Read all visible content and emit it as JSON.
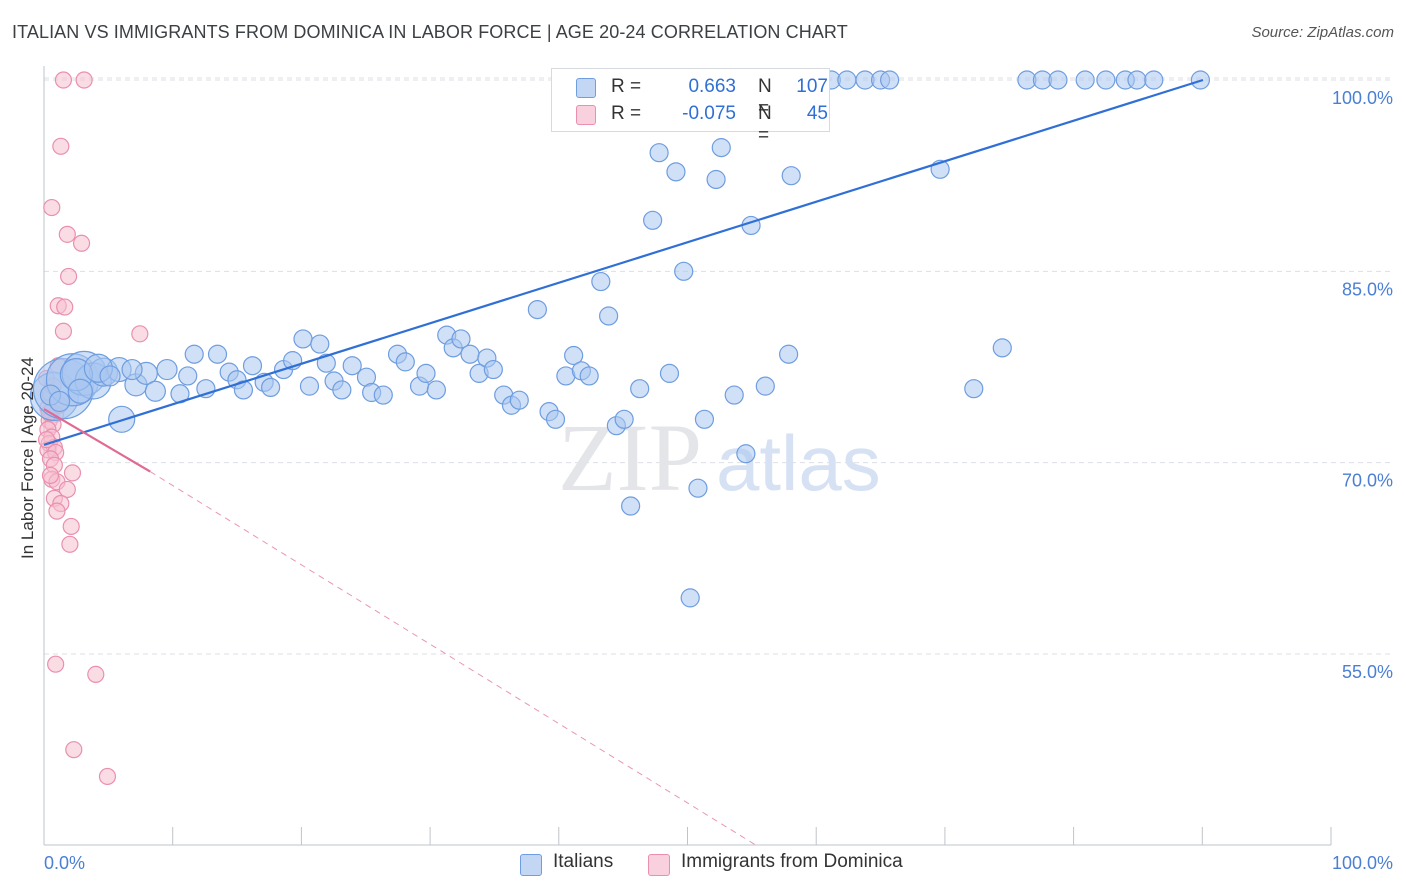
{
  "header": {
    "title": "ITALIAN VS IMMIGRANTS FROM DOMINICA IN LABOR FORCE | AGE 20-24 CORRELATION CHART",
    "source": "Source: ZipAtlas.com"
  },
  "watermark": {
    "zip": "ZIP",
    "atlas": "atlas"
  },
  "colors": {
    "blue": "#2f6fd6",
    "blue_fill": "#aac6f0",
    "blue_stroke": "#6e9de0",
    "pink": "#e06a94",
    "pink_fill": "#f6bfd0",
    "pink_stroke": "#ea8fae",
    "grid": "#dcdfe4",
    "axis_text": "#4a7fd4"
  },
  "legend": {
    "rows": [
      {
        "r_label": "R = ",
        "r_value": "0.663",
        "n_label": "N =",
        "n_value": "107"
      },
      {
        "r_label": "R = ",
        "r_value": "-0.075",
        "n_label": "N =",
        "n_value": "45"
      }
    ]
  },
  "bottom_legend": {
    "italians": "Italians",
    "dominica": "Immigrants from Dominica"
  },
  "chart_data": {
    "type": "scatter",
    "xlabel": "",
    "ylabel": "In Labor Force | Age 20-24",
    "xlim": [
      0,
      100
    ],
    "ylim": [
      40,
      102
    ],
    "x_tick_labels": [
      "0.0%",
      "100.0%"
    ],
    "y_ticks": [
      55,
      70,
      85,
      100
    ],
    "y_tick_labels": [
      "55.0%",
      "70.0%",
      "85.0%",
      "100.0%"
    ],
    "series": [
      {
        "name": "Italians",
        "color": "#2f6fd6",
        "R": 0.663,
        "N": 107,
        "trend": {
          "x": [
            0,
            89.5
          ],
          "y": [
            71.4,
            100.0
          ]
        },
        "points": [
          [
            0.8,
            75.2,
            24
          ],
          [
            1.5,
            75.8,
            30
          ],
          [
            2.2,
            76.5,
            26
          ],
          [
            3.1,
            77.0,
            22
          ],
          [
            3.8,
            76.4,
            18
          ],
          [
            4.6,
            77.1,
            14
          ],
          [
            5.8,
            77.3,
            12
          ],
          [
            2.5,
            76.9,
            16
          ],
          [
            6.0,
            73.4,
            13
          ],
          [
            7.1,
            76.1,
            11
          ],
          [
            7.9,
            77.0,
            11
          ],
          [
            8.6,
            75.6,
            10
          ],
          [
            9.5,
            77.3,
            10
          ],
          [
            10.5,
            75.4,
            9
          ],
          [
            11.1,
            76.8,
            9
          ],
          [
            12.5,
            75.8,
            9
          ],
          [
            11.6,
            78.5,
            9
          ],
          [
            13.4,
            78.5,
            9
          ],
          [
            14.3,
            77.1,
            9
          ],
          [
            14.9,
            76.5,
            9
          ],
          [
            15.4,
            75.7,
            9
          ],
          [
            16.1,
            77.6,
            9
          ],
          [
            17.0,
            76.3,
            9
          ],
          [
            17.5,
            75.9,
            9
          ],
          [
            18.5,
            77.3,
            9
          ],
          [
            19.2,
            78.0,
            9
          ],
          [
            20.0,
            79.7,
            9
          ],
          [
            20.5,
            76.0,
            9
          ],
          [
            21.3,
            79.3,
            9
          ],
          [
            21.8,
            77.8,
            9
          ],
          [
            22.4,
            76.4,
            9
          ],
          [
            23.0,
            75.7,
            9
          ],
          [
            23.8,
            77.6,
            9
          ],
          [
            24.9,
            76.7,
            9
          ],
          [
            25.3,
            75.5,
            9
          ],
          [
            26.2,
            75.3,
            9
          ],
          [
            27.3,
            78.5,
            9
          ],
          [
            27.9,
            77.9,
            9
          ],
          [
            29.0,
            76.0,
            9
          ],
          [
            29.5,
            77.0,
            9
          ],
          [
            30.3,
            75.7,
            9
          ],
          [
            31.1,
            80.0,
            9
          ],
          [
            31.6,
            79.0,
            9
          ],
          [
            32.2,
            79.7,
            9
          ],
          [
            32.9,
            78.5,
            9
          ],
          [
            33.6,
            77.0,
            9
          ],
          [
            34.2,
            78.2,
            9
          ],
          [
            34.7,
            77.3,
            9
          ],
          [
            35.5,
            75.3,
            9
          ],
          [
            36.1,
            74.5,
            9
          ],
          [
            36.7,
            74.9,
            9
          ],
          [
            38.1,
            82.0,
            9
          ],
          [
            39.0,
            74.0,
            9
          ],
          [
            39.5,
            73.4,
            9
          ],
          [
            40.3,
            76.8,
            9
          ],
          [
            40.9,
            78.4,
            9
          ],
          [
            41.5,
            77.2,
            9
          ],
          [
            42.1,
            76.8,
            9
          ],
          [
            43.0,
            84.2,
            9
          ],
          [
            43.6,
            81.5,
            9
          ],
          [
            44.2,
            72.9,
            9
          ],
          [
            44.8,
            73.4,
            9
          ],
          [
            45.3,
            66.6,
            9
          ],
          [
            46.0,
            75.8,
            9
          ],
          [
            47.0,
            89.0,
            9
          ],
          [
            47.5,
            94.3,
            9
          ],
          [
            48.3,
            77.0,
            9
          ],
          [
            48.8,
            92.8,
            9
          ],
          [
            49.4,
            85.0,
            9
          ],
          [
            49.9,
            59.4,
            9
          ],
          [
            50.5,
            68.0,
            9
          ],
          [
            51.0,
            73.4,
            9
          ],
          [
            51.9,
            92.2,
            9
          ],
          [
            52.3,
            94.7,
            9
          ],
          [
            53.3,
            75.3,
            9
          ],
          [
            54.2,
            70.7,
            9
          ],
          [
            54.6,
            88.6,
            9
          ],
          [
            55.7,
            76.0,
            9
          ],
          [
            57.5,
            78.5,
            9
          ],
          [
            57.7,
            92.5,
            9
          ],
          [
            52.1,
            100.0,
            9
          ],
          [
            53.0,
            100.0,
            9
          ],
          [
            54.6,
            100.0,
            9
          ],
          [
            56.0,
            100.0,
            9
          ],
          [
            57.9,
            100.0,
            9
          ],
          [
            59.3,
            100.0,
            9
          ],
          [
            60.8,
            100.0,
            9
          ],
          [
            62.0,
            100.0,
            9
          ],
          [
            63.4,
            100.0,
            9
          ],
          [
            64.6,
            100.0,
            9
          ],
          [
            65.3,
            100.0,
            9
          ],
          [
            69.2,
            93.0,
            9
          ],
          [
            71.8,
            75.8,
            9
          ],
          [
            74.0,
            79.0,
            9
          ],
          [
            75.9,
            100.0,
            9
          ],
          [
            77.1,
            100.0,
            9
          ],
          [
            78.3,
            100.0,
            9
          ],
          [
            80.4,
            100.0,
            9
          ],
          [
            82.0,
            100.0,
            9
          ],
          [
            83.5,
            100.0,
            9
          ],
          [
            84.4,
            100.0,
            9
          ],
          [
            85.7,
            100.0,
            9
          ],
          [
            89.3,
            100.0,
            9
          ],
          [
            0.5,
            75.3,
            10
          ],
          [
            1.2,
            74.8,
            10
          ],
          [
            2.8,
            75.6,
            12
          ],
          [
            4.2,
            77.4,
            14
          ],
          [
            5.1,
            76.8,
            10
          ],
          [
            6.8,
            77.3,
            10
          ]
        ]
      },
      {
        "name": "Immigrants from Dominica",
        "color": "#e06a94",
        "R": -0.075,
        "N": 45,
        "trend": {
          "x": [
            0,
            8.2
          ],
          "y": [
            74.2,
            69.3
          ]
        },
        "trend_dashed": {
          "x": [
            8.2,
            55.0
          ],
          "y": [
            69.3,
            40.0
          ]
        },
        "points": [
          [
            1.5,
            100.0,
            8
          ],
          [
            3.1,
            100.0,
            8
          ],
          [
            1.3,
            94.8,
            8
          ],
          [
            0.6,
            90.0,
            8
          ],
          [
            1.8,
            87.9,
            8
          ],
          [
            2.9,
            87.2,
            8
          ],
          [
            1.9,
            84.6,
            8
          ],
          [
            1.1,
            82.3,
            8
          ],
          [
            1.6,
            82.2,
            8
          ],
          [
            7.4,
            80.1,
            8
          ],
          [
            1.5,
            80.3,
            8
          ],
          [
            1.1,
            77.6,
            8
          ],
          [
            0.2,
            76.6,
            8
          ],
          [
            0.5,
            75.4,
            8
          ],
          [
            0.3,
            74.3,
            8
          ],
          [
            0.6,
            74.0,
            8
          ],
          [
            0.9,
            73.8,
            8
          ],
          [
            0.4,
            73.3,
            8
          ],
          [
            0.7,
            73.0,
            8
          ],
          [
            0.3,
            72.6,
            8
          ],
          [
            0.6,
            72.0,
            8
          ],
          [
            0.4,
            71.5,
            8
          ],
          [
            0.8,
            71.2,
            8
          ],
          [
            0.3,
            71.0,
            8
          ],
          [
            0.9,
            70.8,
            8
          ],
          [
            0.5,
            70.3,
            8
          ],
          [
            0.8,
            69.8,
            8
          ],
          [
            2.2,
            69.2,
            8
          ],
          [
            0.6,
            68.7,
            8
          ],
          [
            1.0,
            68.5,
            8
          ],
          [
            1.8,
            67.9,
            8
          ],
          [
            0.8,
            67.2,
            8
          ],
          [
            1.3,
            66.8,
            8
          ],
          [
            1.0,
            66.2,
            8
          ],
          [
            2.1,
            65.0,
            8
          ],
          [
            2.0,
            63.6,
            8
          ],
          [
            0.9,
            54.2,
            8
          ],
          [
            4.0,
            53.4,
            8
          ],
          [
            2.3,
            47.5,
            8
          ],
          [
            4.9,
            45.4,
            8
          ],
          [
            0.4,
            73.9,
            8
          ],
          [
            0.2,
            71.8,
            8
          ],
          [
            0.7,
            76.0,
            8
          ],
          [
            1.2,
            74.5,
            8
          ],
          [
            0.5,
            69.0,
            8
          ]
        ]
      }
    ]
  }
}
